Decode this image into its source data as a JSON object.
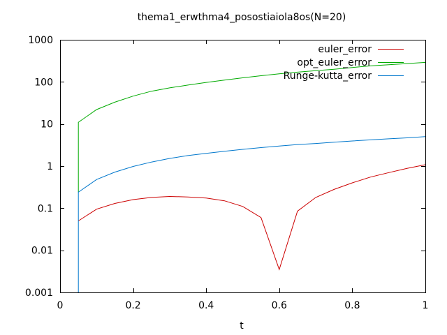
{
  "chart_data": {
    "type": "line",
    "title": "thema1_erwthma4_posostiaiola8os(N=20)",
    "xlabel": "t",
    "ylabel": "",
    "xlim": [
      0,
      1
    ],
    "ylim": [
      0.001,
      1000
    ],
    "yscale": "log",
    "grid": false,
    "legend_position": "top-right",
    "x_ticks": [
      {
        "value": 0,
        "label": "0"
      },
      {
        "value": 0.2,
        "label": "0.2"
      },
      {
        "value": 0.4,
        "label": "0.4"
      },
      {
        "value": 0.6,
        "label": "0.6"
      },
      {
        "value": 0.8,
        "label": "0.8"
      },
      {
        "value": 1,
        "label": "1"
      }
    ],
    "y_ticks": [
      {
        "value": 0.001,
        "label": "0.001"
      },
      {
        "value": 0.01,
        "label": "0.01"
      },
      {
        "value": 0.1,
        "label": "0.1"
      },
      {
        "value": 1,
        "label": "1"
      },
      {
        "value": 10,
        "label": "10"
      },
      {
        "value": 100,
        "label": "100"
      },
      {
        "value": 1000,
        "label": "1000"
      }
    ],
    "series": [
      {
        "name": "euler_error",
        "color": "#cc0000",
        "x": [
          0.05,
          0.1,
          0.15,
          0.2,
          0.25,
          0.3,
          0.35,
          0.4,
          0.45,
          0.5,
          0.55,
          0.6,
          0.65,
          0.7,
          0.75,
          0.8,
          0.85,
          0.9,
          0.95,
          1.0
        ],
        "y": [
          0.05,
          0.095,
          0.13,
          0.16,
          0.18,
          0.19,
          0.185,
          0.175,
          0.15,
          0.11,
          0.06,
          0.0035,
          0.085,
          0.18,
          0.28,
          0.4,
          0.55,
          0.7,
          0.88,
          1.08
        ]
      },
      {
        "name": "opt_euler_error",
        "color": "#00aa00",
        "x": [
          0.05,
          0.05,
          0.1,
          0.15,
          0.2,
          0.25,
          0.3,
          0.35,
          0.4,
          0.45,
          0.5,
          0.55,
          0.6,
          0.65,
          0.7,
          0.75,
          0.8,
          0.85,
          0.9,
          0.95,
          1.0
        ],
        "y": [
          0.24,
          11,
          22,
          33,
          46,
          60,
          72,
          84,
          97,
          110,
          125,
          140,
          155,
          170,
          185,
          200,
          220,
          240,
          255,
          272,
          290
        ]
      },
      {
        "name": "Runge-kutta_error",
        "color": "#0077cc",
        "x": [
          0.05,
          0.05,
          0.1,
          0.15,
          0.2,
          0.25,
          0.3,
          0.35,
          0.4,
          0.45,
          0.5,
          0.55,
          0.6,
          0.65,
          0.7,
          0.75,
          0.8,
          0.85,
          0.9,
          0.95,
          1.0
        ],
        "y": [
          0.001,
          0.24,
          0.48,
          0.72,
          0.98,
          1.25,
          1.52,
          1.78,
          2.0,
          2.25,
          2.5,
          2.75,
          3.0,
          3.25,
          3.45,
          3.7,
          3.95,
          4.2,
          4.45,
          4.7,
          5.0
        ]
      }
    ]
  }
}
